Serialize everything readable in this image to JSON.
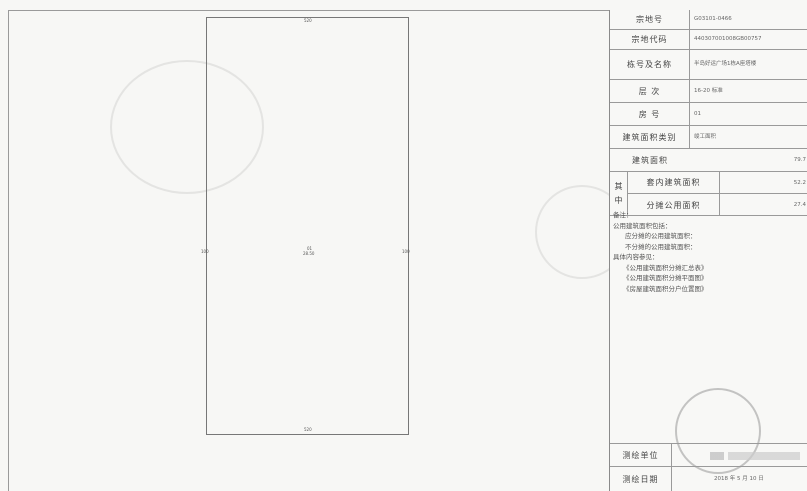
{
  "info_table": {
    "survey_no_label": "宗地号",
    "survey_no_value": "G03101-0466",
    "parcel_code_label": "宗地代码",
    "parcel_code_value": "440307001008GB00757",
    "building_label": "栋号及名称",
    "building_value": "半岛好运广场1栋A座塔楼",
    "floor_label": "层  次",
    "floor_value": "16-20 标准",
    "room_label": "房  号",
    "room_value": "01",
    "area_source_label": "建筑面积类别",
    "area_source_value": "竣工面积",
    "building_area_label": "建筑面积",
    "building_area_value": "79.7",
    "of_which_label_1": "其",
    "of_which_label_2": "中",
    "inner_area_label": "套内建筑面积",
    "inner_area_value": "52.2",
    "shared_area_label": "分摊公用面积",
    "shared_area_value": "27.4",
    "surveyor_label": "测绘单位",
    "date_label": "测绘日期",
    "date_value": "2018 年 5 月 10 日"
  },
  "remarks": {
    "title": "备注：",
    "line1": "公用建筑面积包括：",
    "line2": "应分摊的公用建筑面积：",
    "line3": "不分摊的公用建筑面积：",
    "line4": "具体内容参见：",
    "line5": "《公用建筑面积分摊汇总表》",
    "line6": "《公用建筑面积分摊平面图》",
    "line7": "《房屋建筑面积分户位置图》"
  },
  "plan": {
    "top_dim": "520",
    "bottom_dim": "520",
    "left_dim": "100",
    "right_dim": "100",
    "center_label": "01",
    "center_sub": "28.50"
  }
}
